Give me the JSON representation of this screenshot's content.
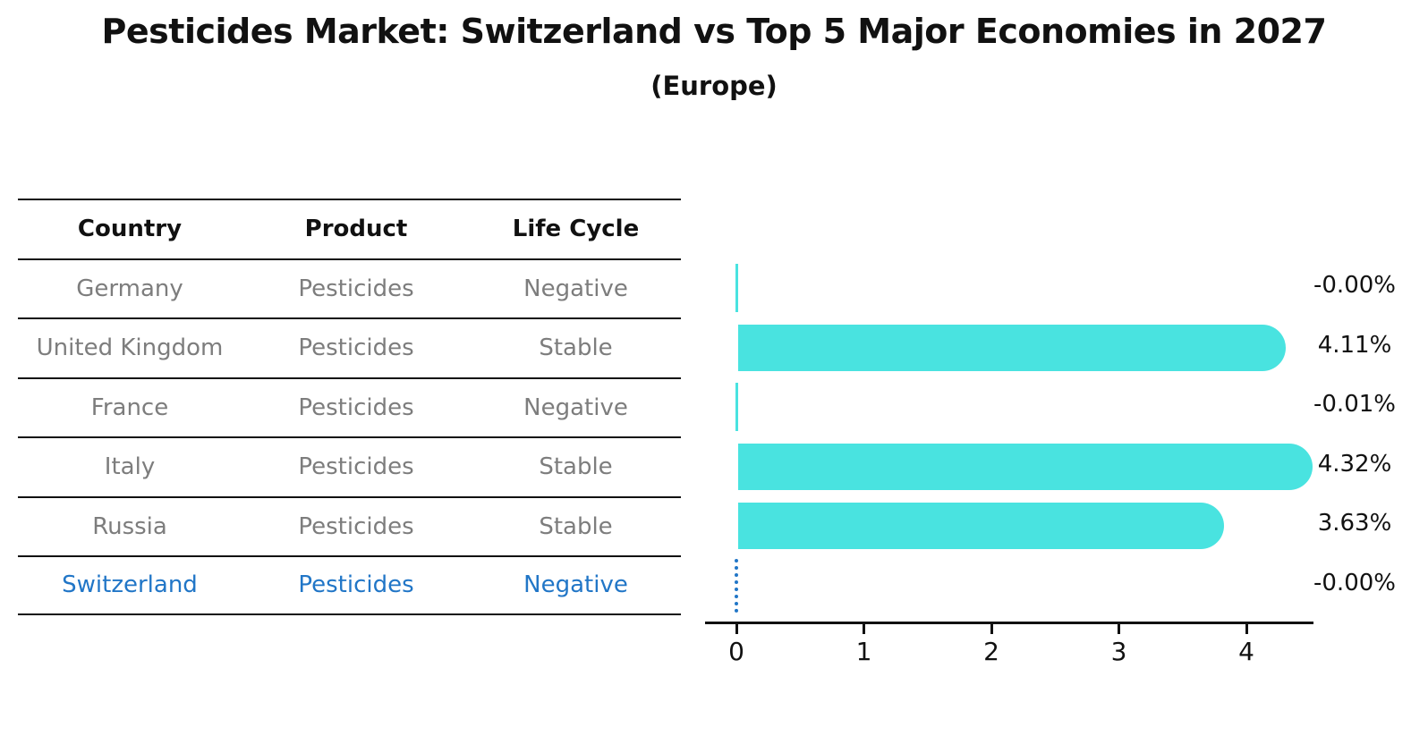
{
  "title": "Pesticides Market: Switzerland vs Top 5 Major Economies in 2027",
  "subtitle": "(Europe)",
  "table": {
    "headers": {
      "country": "Country",
      "product": "Product",
      "life_cycle": "Life Cycle"
    },
    "rows": [
      {
        "country": "Germany",
        "product": "Pesticides",
        "life_cycle": "Negative"
      },
      {
        "country": "United Kingdom",
        "product": "Pesticides",
        "life_cycle": "Stable"
      },
      {
        "country": "France",
        "product": "Pesticides",
        "life_cycle": "Negative"
      },
      {
        "country": "Italy",
        "product": "Pesticides",
        "life_cycle": "Stable"
      },
      {
        "country": "Russia",
        "product": "Pesticides",
        "life_cycle": "Stable"
      },
      {
        "country": "Switzerland",
        "product": "Pesticides",
        "life_cycle": "Negative"
      }
    ],
    "highlighted_row": "Switzerland"
  },
  "chart_data": {
    "type": "bar",
    "orientation": "horizontal",
    "title": "Pesticides Market: Switzerland vs Top 5 Major Economies in 2027",
    "subtitle": "(Europe)",
    "categories": [
      "Germany",
      "United Kingdom",
      "France",
      "Italy",
      "Russia",
      "Switzerland"
    ],
    "values": [
      -0.0,
      4.11,
      -0.01,
      4.32,
      3.63,
      -0.0
    ],
    "value_labels": [
      "-0.00%",
      "4.11%",
      "-0.01%",
      "4.32%",
      "3.63%",
      "-0.00%"
    ],
    "x_ticks": [
      "0",
      "1",
      "2",
      "3",
      "4"
    ],
    "xlim": [
      -0.28,
      4.53
    ],
    "grid": false,
    "legend": false,
    "highlight_index": 5,
    "highlight_style": "dotted-outline"
  },
  "colors": {
    "bar_fill": "#49e3e0",
    "highlight_blue": "#2176c7",
    "muted_text": "#7d7d7d",
    "heading_text": "#111111",
    "axis": "#111111"
  }
}
